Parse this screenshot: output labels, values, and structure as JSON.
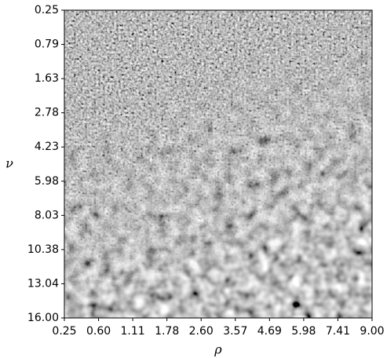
{
  "chart_data": {
    "type": "heatmap",
    "xlabel": "ρ",
    "ylabel": "ν",
    "xcategories": [
      "0.25",
      "0.60",
      "1.11",
      "1.78",
      "2.60",
      "3.57",
      "4.69",
      "5.98",
      "7.41",
      "9.00"
    ],
    "ycategories": [
      "0.25",
      "0.79",
      "1.63",
      "2.78",
      "4.23",
      "5.98",
      "8.03",
      "10.38",
      "13.04",
      "16.00"
    ],
    "colormap": "gray"
  }
}
